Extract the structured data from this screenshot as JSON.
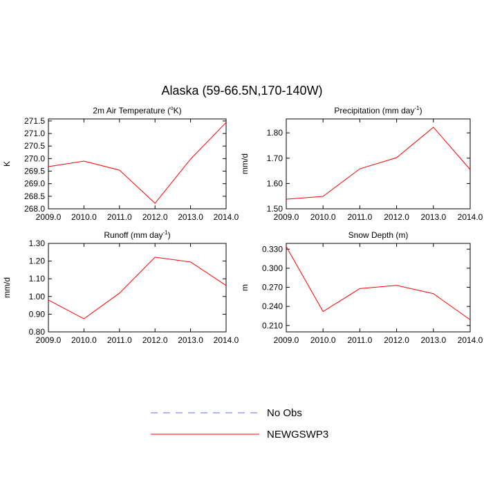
{
  "title": "Alaska (59-66.5N,170-140W)",
  "legend": [
    {
      "name": "No Obs",
      "color": "#6b6bff",
      "dashed": true
    },
    {
      "name": "NEWGSWP3",
      "color": "#ff0000",
      "dashed": false
    }
  ],
  "chart_data": [
    {
      "type": "line",
      "title": [
        {
          "text": "2m Air Temperature ("
        },
        {
          "text": "o",
          "sup": true
        },
        {
          "text": "K)"
        }
      ],
      "y_label": "K",
      "series_legend": 1,
      "x": [
        2009,
        2010,
        2011,
        2012,
        2013,
        2014
      ],
      "values": [
        269.68,
        269.9,
        269.54,
        268.22,
        269.98,
        271.44
      ],
      "xlim": [
        2009,
        2014
      ],
      "ylim": [
        268,
        271.58
      ],
      "xticks": [
        {
          "value": 2009,
          "label": "2009.0"
        },
        {
          "value": 2010,
          "label": "2010.0"
        },
        {
          "value": 2011,
          "label": "2011.0"
        },
        {
          "value": 2012,
          "label": "2012.0"
        },
        {
          "value": 2013,
          "label": "2013.0"
        },
        {
          "value": 2014,
          "label": "2014.0"
        }
      ],
      "yticks": [
        {
          "value": 268,
          "label": "268.0"
        },
        268.5,
        {
          "value": 269,
          "label": "269.0"
        },
        269.5,
        {
          "value": 270,
          "label": "270.0"
        },
        270.5,
        {
          "value": 271,
          "label": "271.0"
        },
        271.5
      ]
    },
    {
      "type": "line",
      "title": [
        {
          "text": "Precipitation (mm day"
        },
        {
          "text": "-1",
          "sup": true
        },
        {
          "text": ")"
        }
      ],
      "y_label": "mm/d",
      "series_legend": 1,
      "x": [
        2009,
        2010,
        2011,
        2012,
        2013,
        2014
      ],
      "values": [
        1.538,
        1.549,
        1.658,
        1.702,
        1.822,
        1.655
      ],
      "xlim": [
        2009,
        2014
      ],
      "ylim": [
        1.5,
        1.855
      ],
      "xticks": [
        {
          "value": 2009,
          "label": "2009.0"
        },
        {
          "value": 2010,
          "label": "2010.0"
        },
        {
          "value": 2011,
          "label": "2011.0"
        },
        {
          "value": 2012,
          "label": "2012.0"
        },
        {
          "value": 2013,
          "label": "2013.0"
        },
        {
          "value": 2014,
          "label": "2014.0"
        }
      ],
      "yticks": [
        {
          "value": 1.5,
          "label": "1.50"
        },
        {
          "value": 1.6,
          "label": "1.60"
        },
        {
          "value": 1.7,
          "label": "1.70"
        },
        {
          "value": 1.8,
          "label": "1.80"
        }
      ]
    },
    {
      "type": "line",
      "title": [
        {
          "text": "Runoff (mm day"
        },
        {
          "text": "-1",
          "sup": true
        },
        {
          "text": ")"
        }
      ],
      "y_label": "mm/d",
      "series_legend": 1,
      "x": [
        2009,
        2010,
        2011,
        2012,
        2013,
        2014
      ],
      "values": [
        0.98,
        0.874,
        1.019,
        1.222,
        1.195,
        1.062
      ],
      "xlim": [
        2009,
        2014
      ],
      "ylim": [
        0.8,
        1.3
      ],
      "xticks": [
        {
          "value": 2009,
          "label": "2009.0"
        },
        {
          "value": 2010,
          "label": "2010.0"
        },
        {
          "value": 2011,
          "label": "2011.0"
        },
        {
          "value": 2012,
          "label": "2012.0"
        },
        {
          "value": 2013,
          "label": "2013.0"
        },
        {
          "value": 2014,
          "label": "2014.0"
        }
      ],
      "yticks": [
        {
          "value": 0.8,
          "label": "0.80"
        },
        {
          "value": 0.9,
          "label": "0.90"
        },
        {
          "value": 1.0,
          "label": "1.00"
        },
        {
          "value": 1.1,
          "label": "1.10"
        },
        {
          "value": 1.2,
          "label": "1.20"
        },
        {
          "value": 1.3,
          "label": "1.30"
        }
      ]
    },
    {
      "type": "line",
      "title": [
        {
          "text": "Snow Depth (m)"
        }
      ],
      "y_label": "m",
      "series_legend": 1,
      "x": [
        2009,
        2010,
        2011,
        2012,
        2013,
        2014
      ],
      "values": [
        0.334,
        0.232,
        0.268,
        0.273,
        0.26,
        0.219
      ],
      "xlim": [
        2009,
        2014
      ],
      "ylim": [
        0.2,
        0.339
      ],
      "xticks": [
        {
          "value": 2009,
          "label": "2009.0"
        },
        {
          "value": 2010,
          "label": "2010.0"
        },
        {
          "value": 2011,
          "label": "2011.0"
        },
        {
          "value": 2012,
          "label": "2012.0"
        },
        {
          "value": 2013,
          "label": "2013.0"
        },
        {
          "value": 2014,
          "label": "2014.0"
        }
      ],
      "yticks": [
        {
          "value": 0.21,
          "label": "0.210"
        },
        {
          "value": 0.24,
          "label": "0.240"
        },
        {
          "value": 0.27,
          "label": "0.270"
        },
        {
          "value": 0.3,
          "label": "0.300"
        },
        {
          "value": 0.33,
          "label": "0.330"
        }
      ]
    }
  ]
}
